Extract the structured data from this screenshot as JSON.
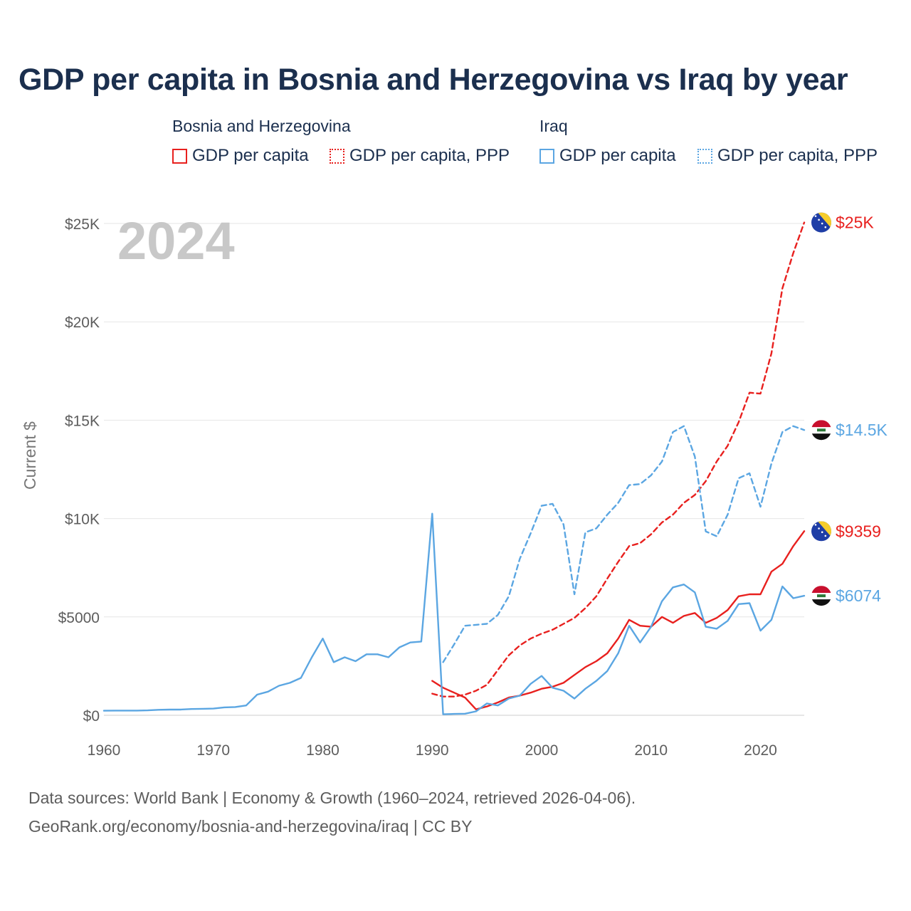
{
  "title": "GDP per capita in Bosnia and Herzegovina vs Iraq by year",
  "legend": {
    "groups": [
      {
        "name": "Bosnia and Herzegovina",
        "items": [
          "GDP per capita",
          "GDP per capita, PPP"
        ]
      },
      {
        "name": "Iraq",
        "items": [
          "GDP per capita",
          "GDP per capita, PPP"
        ]
      }
    ]
  },
  "year_label": "2024",
  "footer": {
    "line1": "Data sources: World Bank | Economy & Growth (1960–2024, retrieved 2026-04-06).",
    "line2": "GeoRank.org/economy/bosnia-and-herzegovina/iraq | CC BY"
  },
  "colors": {
    "bosnia": "#e8201e",
    "iraq": "#5ba6e2",
    "title": "#1b2f4e"
  },
  "chart_data": {
    "type": "line",
    "title": "GDP per capita in Bosnia and Herzegovina vs Iraq by year",
    "ylabel": "Current $",
    "xlabel": "",
    "xlim": [
      1960,
      2024
    ],
    "ylim": [
      0,
      25000
    ],
    "x_ticks": [
      1960,
      1970,
      1980,
      1990,
      2000,
      2010,
      2020
    ],
    "x_tick_labels": [
      "1960",
      "1970",
      "1980",
      "1990",
      "2000",
      "2010",
      "2020"
    ],
    "y_ticks": [
      0,
      5000,
      10000,
      15000,
      20000,
      25000
    ],
    "y_tick_labels": [
      "$0",
      "$5000",
      "$10K",
      "$15K",
      "$20K",
      "$25K"
    ],
    "grid": true,
    "legend_position": "top",
    "series": [
      {
        "name": "Bosnia and Herzegovina GDP per capita",
        "country": "bosnia",
        "style": "solid",
        "end_label": "$9359",
        "x": [
          1990,
          1991,
          1992,
          1993,
          1994,
          1995,
          1996,
          1997,
          1998,
          1999,
          2000,
          2001,
          2002,
          2003,
          2004,
          2005,
          2006,
          2007,
          2008,
          2009,
          2010,
          2011,
          2012,
          2013,
          2014,
          2015,
          2016,
          2017,
          2018,
          2019,
          2020,
          2021,
          2022,
          2023,
          2024
        ],
        "values": [
          1750,
          1400,
          1150,
          900,
          300,
          450,
          650,
          900,
          1000,
          1150,
          1350,
          1450,
          1650,
          2050,
          2450,
          2750,
          3150,
          3900,
          4850,
          4550,
          4500,
          5000,
          4700,
          5050,
          5200,
          4700,
          4950,
          5350,
          6050,
          6150,
          6150,
          7300,
          7700,
          8600,
          9359
        ]
      },
      {
        "name": "Bosnia and Herzegovina GDP per capita, PPP",
        "country": "bosnia",
        "style": "dashed",
        "end_label": "$25K",
        "x": [
          1990,
          1991,
          1992,
          1993,
          1994,
          1995,
          1996,
          1997,
          1998,
          1999,
          2000,
          2001,
          2002,
          2003,
          2004,
          2005,
          2006,
          2007,
          2008,
          2009,
          2010,
          2011,
          2012,
          2013,
          2014,
          2015,
          2016,
          2017,
          2018,
          2019,
          2020,
          2021,
          2022,
          2023,
          2024
        ],
        "values": [
          1100,
          950,
          950,
          1050,
          1250,
          1550,
          2300,
          3050,
          3550,
          3900,
          4150,
          4350,
          4650,
          4950,
          5450,
          6050,
          6950,
          7800,
          8600,
          8750,
          9200,
          9800,
          10200,
          10800,
          11200,
          11900,
          12900,
          13700,
          14900,
          16400,
          16350,
          18400,
          21700,
          23500,
          25050
        ]
      },
      {
        "name": "Iraq GDP per capita",
        "country": "iraq",
        "style": "solid",
        "end_label": "$6074",
        "x": [
          1960,
          1961,
          1962,
          1963,
          1964,
          1965,
          1966,
          1967,
          1968,
          1969,
          1970,
          1971,
          1972,
          1973,
          1974,
          1975,
          1976,
          1977,
          1978,
          1979,
          1980,
          1981,
          1982,
          1983,
          1984,
          1985,
          1986,
          1987,
          1988,
          1989,
          1990,
          1991,
          1992,
          1993,
          1994,
          1995,
          1996,
          1997,
          1998,
          1999,
          2000,
          2001,
          2002,
          2003,
          2004,
          2005,
          2006,
          2007,
          2008,
          2009,
          2010,
          2011,
          2012,
          2013,
          2014,
          2015,
          2016,
          2017,
          2018,
          2019,
          2020,
          2021,
          2022,
          2023,
          2024
        ],
        "values": [
          230,
          240,
          240,
          240,
          250,
          280,
          290,
          290,
          320,
          330,
          340,
          400,
          420,
          500,
          1050,
          1200,
          1500,
          1650,
          1900,
          2950,
          3900,
          2700,
          2950,
          2750,
          3100,
          3100,
          2950,
          3450,
          3700,
          3750,
          10250,
          50,
          70,
          80,
          200,
          600,
          500,
          850,
          1000,
          1600,
          2000,
          1400,
          1250,
          850,
          1350,
          1750,
          2250,
          3150,
          4550,
          3700,
          4500,
          5800,
          6500,
          6650,
          6250,
          4500,
          4400,
          4800,
          5650,
          5700,
          4300,
          4850,
          6550,
          5950,
          6074
        ]
      },
      {
        "name": "Iraq GDP per capita, PPP",
        "country": "iraq",
        "style": "dashed",
        "end_label": "$14.5K",
        "x": [
          1991,
          1992,
          1993,
          1994,
          1995,
          1996,
          1997,
          1998,
          1999,
          2000,
          2001,
          2002,
          2003,
          2004,
          2005,
          2006,
          2007,
          2008,
          2009,
          2010,
          2011,
          2012,
          2013,
          2014,
          2015,
          2016,
          2017,
          2018,
          2019,
          2020,
          2021,
          2022,
          2023,
          2024
        ],
        "values": [
          2700,
          3600,
          4550,
          4600,
          4650,
          5100,
          6050,
          7950,
          9250,
          10650,
          10750,
          9700,
          6150,
          9300,
          9500,
          10200,
          10800,
          11700,
          11750,
          12200,
          12900,
          14400,
          14700,
          13150,
          9350,
          9100,
          10200,
          12050,
          12300,
          10600,
          12800,
          14400,
          14700,
          14500
        ]
      }
    ]
  }
}
